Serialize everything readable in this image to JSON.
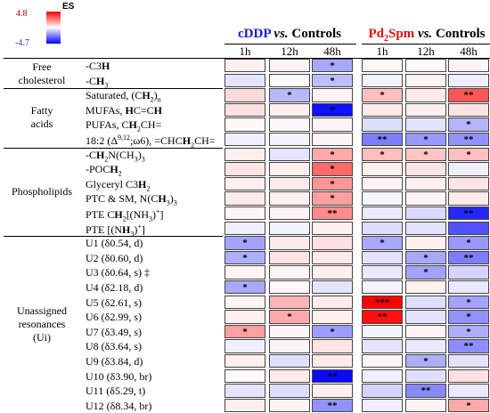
{
  "legend": {
    "title": "ES",
    "max_label": "4.8",
    "min_label": "-4.7",
    "max": 4.8,
    "min": -4.7,
    "colors": {
      "high": "#ff0000",
      "mid": "#ffffff",
      "low": "#0000ff"
    }
  },
  "header": {
    "groups": [
      {
        "title": "cDDP vs. Controls",
        "color": "#1a1acd"
      },
      {
        "title": "Pd2Spm vs. Controls",
        "color": "#e01010"
      }
    ],
    "columns": [
      "1h",
      "12h",
      "48h",
      "1h",
      "12h",
      "48h"
    ]
  },
  "chart_data": {
    "type": "heatmap",
    "title": "",
    "value_label": "ES",
    "range": [
      -4.7,
      4.8
    ],
    "columns": [
      "cDDP 1h",
      "cDDP 12h",
      "cDDP 48h",
      "Pd2Spm 1h",
      "Pd2Spm 12h",
      "Pd2Spm 48h"
    ],
    "categories": [
      {
        "name": "Free cholesterol",
        "rows": [
          "-C3H",
          "-CH3"
        ]
      },
      {
        "name": "Fatty acids",
        "rows": [
          "Saturated, (CH2)n",
          "MUFAs, HC=CH",
          "PUFAs, CH2CH=",
          "18:2 (Δ9,12;ω6), =CHCH2CH="
        ]
      },
      {
        "name": "Phospholipids",
        "rows": [
          "-CH2N(CH3)3",
          "-POCH2",
          "Glyceryl C3H2",
          "PTC & SM, N(CH3)3",
          "PTE CH2[(NH3)+]",
          "PTE [(NH3)+]"
        ]
      },
      {
        "name": "Unassigned resonances (Ui)",
        "rows": [
          "U1 (δ0.54, d)",
          "U2 (δ0.60, d)",
          "U3 (δ0.64, s) ‡",
          "U4 (δ2.18, d)",
          "U5 (δ2.61, s)",
          "U6 (δ2.99, s)",
          "U7 (δ3.49, s)",
          "U8 (δ3.64, s)",
          "U9 (δ3.84, d)",
          "U10 (δ3.90, br)",
          "U11 (δ5.29, t)",
          "U12 (δ8.34, br)"
        ]
      }
    ],
    "rows": [
      {
        "label": "-C3H",
        "values": [
          0.3,
          0.2,
          -1.6,
          0.15,
          0.1,
          0.2
        ],
        "sig": [
          "",
          "",
          "*",
          "",
          "",
          ""
        ]
      },
      {
        "label": "-CH3",
        "values": [
          -0.5,
          0.1,
          -1.2,
          -0.2,
          0.2,
          -0.3
        ],
        "sig": [
          "",
          "",
          "*",
          "",
          "",
          ""
        ]
      },
      {
        "label": "Saturated, (CH2)n",
        "values": [
          0.7,
          -1.3,
          0.2,
          1.2,
          0.4,
          3.2
        ],
        "sig": [
          "",
          "*",
          "",
          "*",
          "",
          "**"
        ]
      },
      {
        "label": "MUFAs, HC=CH",
        "values": [
          0.6,
          0.3,
          -4.4,
          0.4,
          0.3,
          0.5
        ],
        "sig": [
          "",
          "",
          "*",
          "",
          "",
          ""
        ]
      },
      {
        "label": "PUFAs, CH2CH=",
        "values": [
          0.1,
          0.1,
          0.2,
          -0.6,
          -0.5,
          -1.4
        ],
        "sig": [
          "",
          "",
          "",
          "",
          "",
          "*"
        ]
      },
      {
        "label": "18:2 (Δ9,12;ω6), =CHCH2CH=",
        "values": [
          -0.3,
          -0.2,
          0.2,
          -2.4,
          -1.9,
          -2.0
        ],
        "sig": [
          "",
          "",
          "",
          "**",
          "*",
          "**"
        ]
      },
      {
        "label": "-CH2N(CH3)3",
        "values": [
          0.3,
          -0.5,
          1.6,
          1.2,
          1.1,
          1.2
        ],
        "sig": [
          "",
          "",
          "*",
          "*",
          "*",
          "*"
        ]
      },
      {
        "label": "-POCH2",
        "values": [
          0.5,
          0.3,
          2.8,
          0.3,
          0.5,
          -0.3
        ],
        "sig": [
          "",
          "",
          "*",
          "",
          "",
          ""
        ]
      },
      {
        "label": "Glyceryl C3H2",
        "values": [
          0.3,
          0.4,
          2.0,
          0.2,
          0.3,
          0.5
        ],
        "sig": [
          "",
          "",
          "*",
          "",
          "",
          ""
        ]
      },
      {
        "label": "PTC & SM, N(CH3)3",
        "values": [
          0.4,
          0.3,
          1.8,
          -0.2,
          0.2,
          0.4
        ],
        "sig": [
          "",
          "",
          "*",
          "",
          "",
          ""
        ]
      },
      {
        "label": "PTE CH2[(NH3)+]",
        "values": [
          0.2,
          0.2,
          2.2,
          -0.4,
          -0.7,
          -4.0
        ],
        "sig": [
          "",
          "",
          "**",
          "",
          "",
          "**"
        ]
      },
      {
        "label": "PTE [(NH3)+]",
        "values": [
          -0.3,
          -0.2,
          0.3,
          -0.6,
          -0.5,
          -3.2
        ],
        "sig": [
          "",
          "",
          "",
          "",
          "",
          ""
        ]
      },
      {
        "label": "U1 (δ0.54, d)",
        "values": [
          -1.7,
          0.4,
          0.6,
          -1.6,
          0.3,
          -1.9
        ],
        "sig": [
          "*",
          "",
          "",
          "*",
          "",
          "*"
        ]
      },
      {
        "label": "U2 (δ0.60, d)",
        "values": [
          -1.5,
          0.5,
          0.4,
          -0.5,
          -1.6,
          -2.4
        ],
        "sig": [
          "*",
          "",
          "",
          "",
          "*",
          "**"
        ]
      },
      {
        "label": "U3 (δ0.64, s) ‡",
        "values": [
          0.2,
          0.2,
          0.3,
          -0.4,
          -1.7,
          -0.8
        ],
        "sig": [
          "",
          "",
          "",
          "",
          "*",
          ""
        ]
      },
      {
        "label": "U4 (δ2.18, d)",
        "values": [
          -1.6,
          0.1,
          -0.5,
          -0.2,
          0.3,
          -0.4
        ],
        "sig": [
          "*",
          "",
          "",
          "",
          "",
          ""
        ]
      },
      {
        "label": "U5 (δ2.61, s)",
        "values": [
          0.2,
          1.4,
          0.4,
          4.8,
          -0.6,
          -1.7
        ],
        "sig": [
          "",
          "",
          "",
          "***",
          "",
          "*"
        ]
      },
      {
        "label": "U6 (δ2.99, s)",
        "values": [
          0.3,
          1.6,
          0.3,
          4.5,
          -0.5,
          -2.0
        ],
        "sig": [
          "",
          "*",
          "",
          "**",
          "",
          "*"
        ]
      },
      {
        "label": "U7 (δ3.49, s)",
        "values": [
          1.8,
          0.2,
          -1.8,
          -0.2,
          0.2,
          -1.5
        ],
        "sig": [
          "*",
          "",
          "*",
          "",
          "",
          "*"
        ]
      },
      {
        "label": "U8 (δ3.64, s)",
        "values": [
          -0.3,
          0.2,
          0.5,
          -0.5,
          -0.4,
          -2.1
        ],
        "sig": [
          "",
          "",
          "",
          "",
          "",
          "**"
        ]
      },
      {
        "label": "U9 (δ3.84, d)",
        "values": [
          0.3,
          -0.6,
          0.4,
          0.2,
          -1.5,
          -0.5
        ],
        "sig": [
          "",
          "",
          "",
          "",
          "*",
          ""
        ]
      },
      {
        "label": "U10 (δ3.90, br)",
        "values": [
          0.1,
          0.4,
          -4.5,
          -0.3,
          -0.6,
          0.6
        ],
        "sig": [
          "",
          "",
          "**",
          "",
          "",
          ""
        ]
      },
      {
        "label": "U11 (δ5.29, t)",
        "values": [
          -0.5,
          -0.6,
          0.3,
          -0.8,
          -2.2,
          -0.4
        ],
        "sig": [
          "",
          "",
          "",
          "",
          "**",
          ""
        ]
      },
      {
        "label": "U12 (δ8.34, br)",
        "values": [
          0.3,
          0.2,
          -2.0,
          -0.3,
          0.2,
          1.6
        ],
        "sig": [
          "",
          "",
          "**",
          "",
          "",
          "*"
        ]
      }
    ]
  }
}
